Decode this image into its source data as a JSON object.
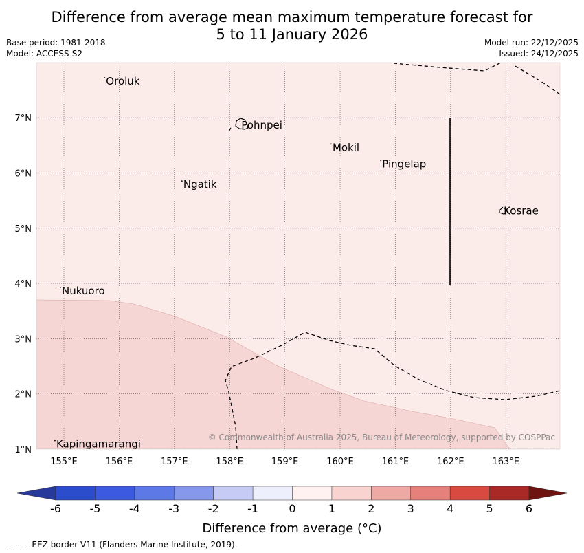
{
  "title": {
    "line1": "Difference from average mean maximum temperature forecast for",
    "line2": "5 to 11 January 2026"
  },
  "meta_left": {
    "base_period": "Base period: 1981-2018",
    "model": "Model: ACCESS-S2"
  },
  "meta_right": {
    "model_run": "Model run: 22/12/2025",
    "issued": "Issued: 24/12/2025"
  },
  "map": {
    "lon_range": [
      154.5,
      164.0
    ],
    "lat_range": [
      1.0,
      8.0
    ],
    "lon_ticks": [
      {
        "value": 155,
        "label": "155°E"
      },
      {
        "value": 156,
        "label": "156°E"
      },
      {
        "value": 157,
        "label": "157°E"
      },
      {
        "value": 158,
        "label": "158°E"
      },
      {
        "value": 159,
        "label": "159°E"
      },
      {
        "value": 160,
        "label": "160°E"
      },
      {
        "value": 161,
        "label": "161°E"
      },
      {
        "value": 162,
        "label": "162°E"
      },
      {
        "value": 163,
        "label": "163°E"
      }
    ],
    "lat_ticks": [
      {
        "value": 1,
        "label": "1°N"
      },
      {
        "value": 2,
        "label": "2°N"
      },
      {
        "value": 3,
        "label": "3°N"
      },
      {
        "value": 4,
        "label": "4°N"
      },
      {
        "value": 5,
        "label": "5°N"
      },
      {
        "value": 6,
        "label": "6°N"
      },
      {
        "value": 7,
        "label": "7°N"
      }
    ],
    "background_color": "#fbebe9",
    "band_color": "#f5d6d4",
    "places": [
      {
        "name": "Oroluk",
        "lon": 155.75,
        "lat": 7.65
      },
      {
        "name": "Pohnpei",
        "lon": 158.2,
        "lat": 6.85
      },
      {
        "name": "Mokil",
        "lon": 159.85,
        "lat": 6.45
      },
      {
        "name": "Pingelap",
        "lon": 160.75,
        "lat": 6.15
      },
      {
        "name": "Ngatik",
        "lon": 157.15,
        "lat": 5.78
      },
      {
        "name": "Kosrae",
        "lon": 162.95,
        "lat": 5.3
      },
      {
        "name": "Nukuoro",
        "lon": 154.95,
        "lat": 3.85
      },
      {
        "name": "Kapingamarangi",
        "lon": 154.85,
        "lat": 1.08
      }
    ],
    "attribution": "© Commonwealth of Australia 2025, Bureau of Meteorology, supported by COSPPac"
  },
  "colorbar": {
    "ticks": [
      "-6",
      "-5",
      "-4",
      "-3",
      "-2",
      "-1",
      "0",
      "1",
      "2",
      "3",
      "4",
      "5",
      "6"
    ],
    "colors": [
      "#273a9c",
      "#2b4ccb",
      "#3b5ae0",
      "#5c79e6",
      "#8598ec",
      "#c5cbf5",
      "#eeeffc",
      "#fff2f0",
      "#f9d3d0",
      "#efa9a5",
      "#e6807a",
      "#d84a3f",
      "#a82925",
      "#6d1411"
    ],
    "label": "Difference from average (°C)"
  },
  "footnote": "--  --  -- EEZ border V11 (Flanders Marine Institute, 2019)."
}
